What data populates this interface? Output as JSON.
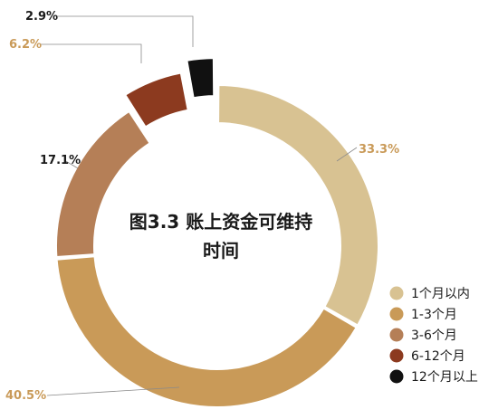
{
  "chart_data": {
    "type": "donut",
    "title_lines": [
      "图3.3 账上资金可维持",
      "时间"
    ],
    "categories": [
      "1个月以内",
      "1-3个月",
      "3-6个月",
      "6-12个月",
      "12个月以上"
    ],
    "values": [
      33.3,
      40.5,
      17.1,
      6.2,
      2.9
    ],
    "value_labels": [
      "33.3%",
      "40.5%",
      "17.1%",
      "6.2%",
      "2.9%"
    ],
    "colors": [
      "#d8c292",
      "#c99a58",
      "#b57f57",
      "#8c3a1f",
      "#111111"
    ],
    "label_colors": [
      "#c99a58",
      "#c99a58",
      "#1a1a1a",
      "#c99a58",
      "#1a1a1a"
    ],
    "legend_position": "bottom-right",
    "exploded": [
      "6-12个月",
      "12个月以上"
    ]
  }
}
